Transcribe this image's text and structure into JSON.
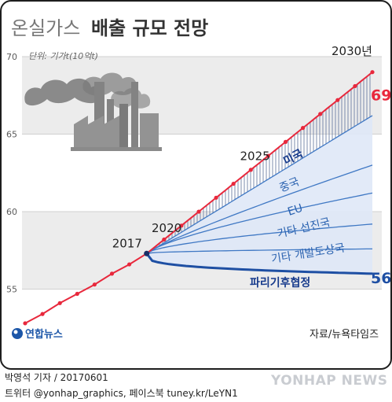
{
  "title": {
    "light": "온실가스",
    "bold": "배출 규모 전망"
  },
  "unit": "단위: 기가t(10억t)",
  "logo": {
    "text": "연합뉴스",
    "icon": "yonhap-logo-icon"
  },
  "source": "자료/뉴욕타임즈",
  "byline": "박영석 기자 / 20170601",
  "social": "트위터 @yonhap_graphics, 페이스북 tuney.kr/LeYN1",
  "watermark": "YONHAP NEWS",
  "illustration": "factory-smokestacks-icon",
  "colors": {
    "current_path": "#e8283c",
    "paris_path": "#1e4fa3",
    "band_line": "#3f78c4",
    "band_fill": "#dfe8f7",
    "hatch": "#6e7fa5"
  },
  "chart_data": {
    "type": "line",
    "ylim": [
      53,
      70
    ],
    "xlim": [
      2010,
      2030
    ],
    "y_ticks": [
      55,
      60,
      65,
      70
    ],
    "grid": true,
    "current_path": {
      "x": [
        2010,
        2011,
        2012,
        2013,
        2014,
        2015,
        2016,
        2017,
        2018,
        2019,
        2020,
        2021,
        2022,
        2023,
        2024,
        2025,
        2026,
        2027,
        2028,
        2029,
        2030
      ],
      "values": [
        52.8,
        53.4,
        54.1,
        54.7,
        55.3,
        56.0,
        56.6,
        57.3,
        57.9,
        58.5,
        59.1,
        59.7,
        60.4,
        61.0,
        61.7,
        62.3,
        62.9,
        63.6,
        64.2,
        64.8,
        69
      ]
    },
    "year_labels": [
      {
        "label": "2017",
        "x": 2017
      },
      {
        "label": "2020",
        "x": 2020
      },
      {
        "label": "2025",
        "x": 2025
      },
      {
        "label": "2030년",
        "x": 2030
      }
    ],
    "bands": [
      {
        "name": "미국",
        "end": 66.2,
        "strong": true
      },
      {
        "name": "중국",
        "end": 63.0
      },
      {
        "name": "EU",
        "end": 61.2
      },
      {
        "name": "기타 선진국",
        "end": 59.2
      },
      {
        "name": "기타 개발도상국",
        "end": 57.6
      },
      {
        "name": "파리기후협정",
        "end": 56,
        "strong": true
      }
    ],
    "end_labels": {
      "current": "69",
      "paris": "56"
    }
  }
}
